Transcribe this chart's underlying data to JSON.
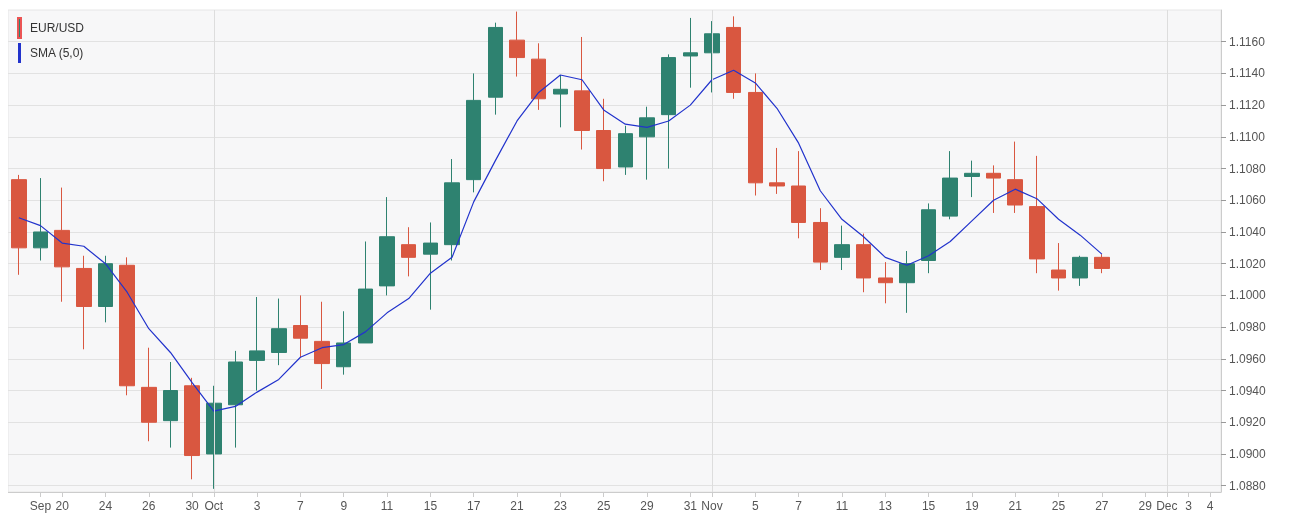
{
  "chart_data": {
    "type": "candlestick",
    "categories": [
      null,
      "Sep",
      "20",
      null,
      "24",
      null,
      "26",
      null,
      "30",
      "Oct",
      null,
      "3",
      null,
      "7",
      null,
      "9",
      null,
      "11",
      null,
      "15",
      null,
      "17",
      null,
      "21",
      null,
      "23",
      null,
      "25",
      null,
      "29",
      null,
      "31",
      "Nov",
      null,
      "5",
      null,
      "7",
      null,
      "11",
      null,
      "13",
      null,
      "15",
      null,
      "19",
      null,
      "21",
      null,
      "25",
      null,
      "27",
      null,
      "29",
      "Dec",
      "3",
      "4"
    ],
    "series": [
      {
        "name": "EUR/USD",
        "ohlc": [
          [
            1.1073,
            1.1076,
            1.1013,
            1.103
          ],
          [
            1.103,
            1.1074,
            1.1022,
            1.104
          ],
          [
            1.1041,
            1.1068,
            1.0996,
            1.1018
          ],
          [
            1.1017,
            1.1025,
            1.0966,
            1.0993
          ],
          [
            1.0993,
            1.1025,
            1.0983,
            1.102
          ],
          [
            1.1019,
            1.1024,
            1.0937,
            1.0943
          ],
          [
            1.0942,
            1.0967,
            1.0908,
            1.092
          ],
          [
            1.0921,
            1.0958,
            1.0904,
            1.094
          ],
          [
            1.0943,
            1.0948,
            1.0884,
            1.0899
          ],
          [
            1.09,
            1.0943,
            1.0878,
            1.0932
          ],
          [
            1.0931,
            1.0965,
            1.0904,
            1.0958
          ],
          [
            1.0959,
            1.0999,
            1.094,
            1.0965
          ],
          [
            1.0964,
            1.0998,
            1.0956,
            1.0979
          ],
          [
            1.0981,
            1.1,
            1.0961,
            1.0973
          ],
          [
            1.0971,
            1.0996,
            1.0941,
            1.0957
          ],
          [
            1.0955,
            1.099,
            1.095,
            1.097
          ],
          [
            1.097,
            1.1034,
            1.097,
            1.1004
          ],
          [
            1.1006,
            1.1062,
            1.1,
            1.1037
          ],
          [
            1.1032,
            1.1043,
            1.1012,
            1.1024
          ],
          [
            1.1026,
            1.1046,
            1.0991,
            1.1033
          ],
          [
            1.1032,
            1.1086,
            1.1022,
            1.1071
          ],
          [
            1.1073,
            1.114,
            1.1065,
            1.1123
          ],
          [
            1.1125,
            1.1172,
            1.1114,
            1.1169
          ],
          [
            1.1161,
            1.1179,
            1.1138,
            1.115
          ],
          [
            1.1149,
            1.1159,
            1.1117,
            1.1124
          ],
          [
            1.1127,
            1.1139,
            1.1106,
            1.113
          ],
          [
            1.1129,
            1.1163,
            1.1092,
            1.1104
          ],
          [
            1.1104,
            1.1124,
            1.1072,
            1.108
          ],
          [
            1.1081,
            1.1107,
            1.1076,
            1.1102
          ],
          [
            1.11,
            1.1119,
            1.1073,
            1.1112
          ],
          [
            1.1114,
            1.1152,
            1.108,
            1.115
          ],
          [
            1.1151,
            1.1175,
            1.1131,
            1.1153
          ],
          [
            1.1153,
            1.1173,
            1.1128,
            1.1165
          ],
          [
            1.1169,
            1.1176,
            1.1124,
            1.1128
          ],
          [
            1.1128,
            1.114,
            1.1063,
            1.1071
          ],
          [
            1.1071,
            1.1093,
            1.1064,
            1.1069
          ],
          [
            1.1069,
            1.1091,
            1.1036,
            1.1046
          ],
          [
            1.1046,
            1.1055,
            1.1016,
            1.1021
          ],
          [
            1.1024,
            1.1044,
            1.1016,
            1.1032
          ],
          [
            1.1032,
            1.1039,
            1.1002,
            1.1011
          ],
          [
            1.1011,
            1.1021,
            1.0995,
            1.1008
          ],
          [
            1.1008,
            1.1028,
            1.0989,
            1.102
          ],
          [
            1.1022,
            1.1058,
            1.1014,
            1.1054
          ],
          [
            1.105,
            1.1091,
            1.1048,
            1.1074
          ],
          [
            1.1075,
            1.1085,
            1.1062,
            1.1077
          ],
          [
            1.1077,
            1.1082,
            1.1052,
            1.1074
          ],
          [
            1.1073,
            1.1097,
            1.1052,
            1.1057
          ],
          [
            1.1056,
            1.1088,
            1.1014,
            1.1023
          ],
          [
            1.1016,
            1.1033,
            1.1003,
            1.1011
          ],
          [
            1.1011,
            1.1025,
            1.1006,
            1.1024
          ],
          [
            1.1024,
            1.1026,
            1.1014,
            1.1017
          ],
          null,
          null,
          null,
          null,
          null
        ],
        "colors": [
          "#d95740",
          "#2e8270",
          "#d95740",
          "#d95740",
          "#2e8270",
          "#d95740",
          "#d95740",
          "#2e8270",
          "#d95740",
          "#2e8270",
          "#2e8270",
          "#2e8270",
          "#2e8270",
          "#d95740",
          "#d95740",
          "#2e8270",
          "#2e8270",
          "#2e8270",
          "#d95740",
          "#2e8270",
          "#2e8270",
          "#2e8270",
          "#2e8270",
          "#d95740",
          "#d95740",
          "#2e8270",
          "#d95740",
          "#d95740",
          "#2e8270",
          "#2e8270",
          "#2e8270",
          "#2e8270",
          "#2e8270",
          "#d95740",
          "#d95740",
          "#d95740",
          "#d95740",
          "#d95740",
          "#2e8270",
          "#d95740",
          "#d95740",
          "#2e8270",
          "#2e8270",
          "#2e8270",
          "#2e8270",
          "#d95740",
          "#d95740",
          "#d95740",
          "#d95740",
          "#2e8270",
          "#d95740",
          null,
          null,
          null,
          null,
          null
        ]
      },
      {
        "name": "SMA (5,0)",
        "type": "line",
        "color": "#2233cc",
        "values": [
          1.1049,
          1.1044,
          1.1033,
          1.1031,
          1.102,
          1.1002,
          1.0979,
          1.0964,
          1.0945,
          1.0927,
          1.093,
          1.0939,
          1.0947,
          1.0961,
          1.0967,
          1.0969,
          1.0977,
          1.0989,
          1.0998,
          1.1014,
          1.1024,
          1.1059,
          1.1085,
          1.111,
          1.1128,
          1.1139,
          1.1136,
          1.1117,
          1.1108,
          1.1106,
          1.111,
          1.112,
          1.1136,
          1.1142,
          1.1134,
          1.1118,
          1.1096,
          1.1066,
          1.1048,
          1.1037,
          1.1024,
          1.1019,
          1.1025,
          1.1034,
          1.1047,
          1.106,
          1.1067,
          1.1061,
          1.1048,
          1.1038,
          1.1026,
          null,
          null,
          null,
          null,
          null
        ]
      }
    ],
    "ylim": [
      1.0876,
      1.118
    ],
    "yticks": [
      {
        "value": 1.088,
        "label": "1.0880"
      },
      {
        "value": 1.09,
        "label": "1.0900"
      },
      {
        "value": 1.092,
        "label": "1.0920"
      },
      {
        "value": 1.094,
        "label": "1.0940"
      },
      {
        "value": 1.096,
        "label": "1.0960"
      },
      {
        "value": 1.098,
        "label": "1.0980"
      },
      {
        "value": 1.1,
        "label": "1.1000"
      },
      {
        "value": 1.102,
        "label": "1.1020"
      },
      {
        "value": 1.104,
        "label": "1.1040"
      },
      {
        "value": 1.106,
        "label": "1.1060"
      },
      {
        "value": 1.108,
        "label": "1.1080"
      },
      {
        "value": 1.11,
        "label": "1.1100"
      },
      {
        "value": 1.112,
        "label": "1.1120"
      },
      {
        "value": 1.114,
        "label": "1.1140"
      },
      {
        "value": 1.116,
        "label": "1.1160"
      }
    ],
    "grid": "y",
    "ref_lines": [
      {
        "axis": "x",
        "value": "Oct",
        "color": "#dddddd"
      },
      {
        "axis": "x",
        "value": "Nov",
        "color": "#dddddd"
      },
      {
        "axis": "x",
        "value": "Dec",
        "color": "#dddddd"
      }
    ],
    "legend": "top left"
  }
}
